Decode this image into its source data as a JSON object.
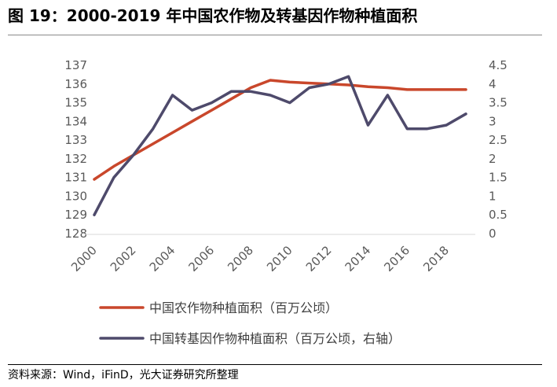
{
  "figure": {
    "title": "图 19：2000-2019 年中国农作物及转基因作物种植面积",
    "source": "资料来源：Wind，iFinD，光大证券研究所整理"
  },
  "chart_data": {
    "type": "line",
    "title": "",
    "x": [
      2000,
      2001,
      2002,
      2003,
      2004,
      2005,
      2006,
      2007,
      2008,
      2009,
      2010,
      2011,
      2012,
      2013,
      2014,
      2015,
      2016,
      2017,
      2018,
      2019
    ],
    "x_tick_labels": [
      "2000",
      "2002",
      "2004",
      "2006",
      "2008",
      "2010",
      "2012",
      "2014",
      "2016",
      "2018"
    ],
    "y_left": {
      "ylim": [
        128,
        137
      ],
      "ticks": [
        "128",
        "129",
        "130",
        "131",
        "132",
        "133",
        "134",
        "135",
        "136",
        "137"
      ]
    },
    "y_right": {
      "ylim": [
        0,
        4.5
      ],
      "ticks": [
        "0",
        "0.5",
        "1",
        "1.5",
        "2",
        "2.5",
        "3",
        "3.5",
        "4",
        "4.5"
      ]
    },
    "series": [
      {
        "name": "中国农作物种植面积（百万公顷）",
        "axis": "left",
        "color": "#C9472B",
        "values": [
          130.9,
          131.6,
          132.2,
          132.8,
          133.4,
          134.0,
          134.6,
          135.2,
          135.8,
          136.2,
          136.1,
          136.05,
          136.0,
          135.95,
          135.85,
          135.8,
          135.7,
          135.7,
          135.7,
          135.7
        ]
      },
      {
        "name": "中国转基因作物种植面积（百万公顷，右轴）",
        "axis": "right",
        "color": "#4E4A6B",
        "values": [
          0.5,
          1.5,
          2.1,
          2.8,
          3.7,
          3.3,
          3.5,
          3.8,
          3.8,
          3.7,
          3.5,
          3.9,
          4.0,
          4.2,
          2.9,
          3.7,
          2.8,
          2.8,
          2.9,
          3.2
        ]
      }
    ]
  }
}
